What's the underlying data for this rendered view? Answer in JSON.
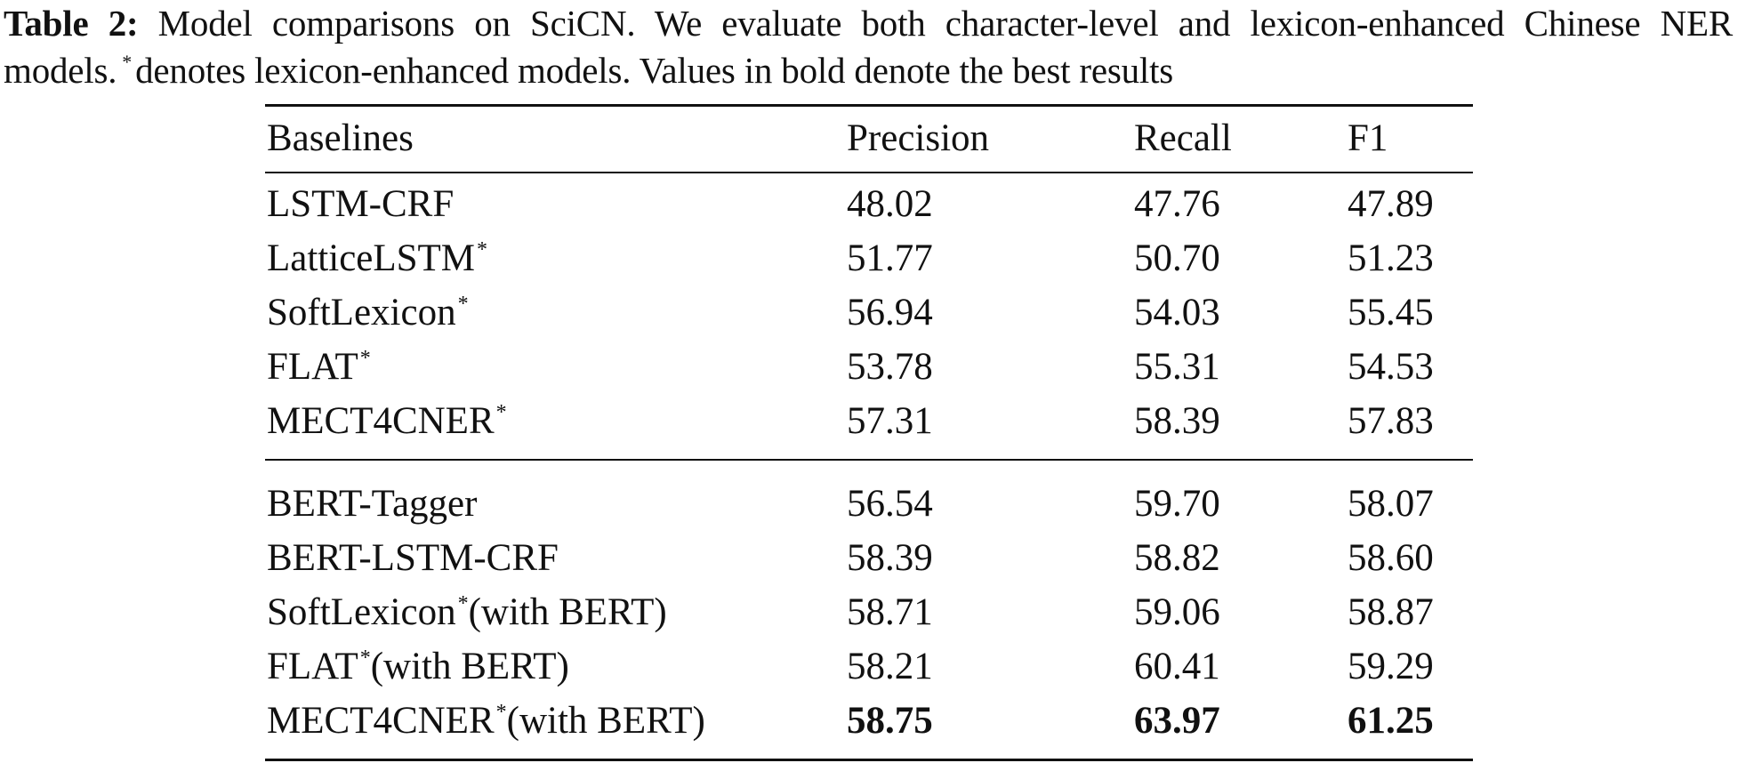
{
  "caption": {
    "label": "Table 2:",
    "text_before_marker": "Model comparisons on SciCN. We evaluate both character-level and lexicon-enhanced Chinese NER models.",
    "marker": "*",
    "text_after_marker": "denotes lexicon-enhanced models. Values in bold denote the best results"
  },
  "table": {
    "headers": [
      "Baselines",
      "Precision",
      "Recall",
      "F1"
    ],
    "groups": [
      {
        "rows": [
          {
            "name": "LSTM-CRF",
            "star": "",
            "suffix": "",
            "precision": "48.02",
            "recall": "47.76",
            "f1": "47.89"
          },
          {
            "name": "LatticeLSTM",
            "star": "*",
            "suffix": "",
            "precision": "51.77",
            "recall": "50.70",
            "f1": "51.23"
          },
          {
            "name": "SoftLexicon",
            "star": "*",
            "suffix": "",
            "precision": "56.94",
            "recall": "54.03",
            "f1": "55.45"
          },
          {
            "name": "FLAT",
            "star": "*",
            "suffix": "",
            "precision": "53.78",
            "recall": "55.31",
            "f1": "54.53"
          },
          {
            "name": "MECT4CNER",
            "star": "*",
            "suffix": "",
            "precision": "57.31",
            "recall": "58.39",
            "f1": "57.83"
          }
        ]
      },
      {
        "rows": [
          {
            "name": "BERT-Tagger",
            "star": "",
            "suffix": "",
            "precision": "56.54",
            "recall": "59.70",
            "f1": "58.07"
          },
          {
            "name": "BERT-LSTM-CRF",
            "star": "",
            "suffix": "",
            "precision": "58.39",
            "recall": "58.82",
            "f1": "58.60"
          },
          {
            "name": "SoftLexicon",
            "star": "*",
            "suffix": "(with BERT)",
            "precision": "58.71",
            "recall": "59.06",
            "f1": "58.87"
          },
          {
            "name": "FLAT",
            "star": "*",
            "suffix": "(with BERT)",
            "precision": "58.21",
            "recall": "60.41",
            "f1": "59.29"
          },
          {
            "name": "MECT4CNER",
            "star": "*",
            "suffix": "(with BERT)",
            "precision": "58.75",
            "recall": "63.97",
            "f1": "61.25",
            "bold": true
          }
        ]
      }
    ]
  }
}
